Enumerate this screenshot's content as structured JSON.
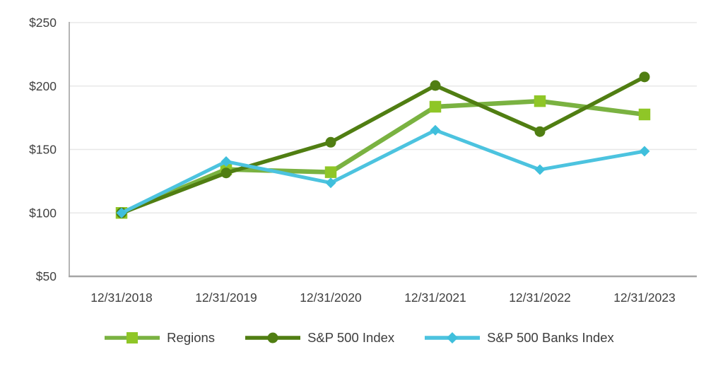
{
  "chart_data": {
    "type": "line",
    "title": "",
    "categories": [
      "12/31/2018",
      "12/31/2019",
      "12/31/2020",
      "12/31/2021",
      "12/31/2022",
      "12/31/2023"
    ],
    "series": [
      {
        "name": "Regions",
        "marker": "square",
        "line_color": "#7ab241",
        "marker_color": "#8fc627",
        "line_width": 6.5,
        "values": [
          100.0,
          134.3,
          132.1,
          183.7,
          188.1,
          177.6
        ]
      },
      {
        "name": "S&P 500 Index",
        "marker": "circle",
        "line_color": "#507e12",
        "marker_color": "#507e12",
        "line_width": 5.5,
        "values": [
          100.0,
          131.5,
          155.7,
          200.4,
          164.1,
          207.2
        ]
      },
      {
        "name": "S&P 500 Banks Index",
        "marker": "diamond",
        "line_color": "#4cc3df",
        "marker_color": "#3fbfdc",
        "line_width": 5,
        "values": [
          100.0,
          140.5,
          123.7,
          165.2,
          134.1,
          148.6
        ]
      }
    ],
    "y_axis": {
      "ticks": [
        {
          "label": "$250",
          "value": 250
        },
        {
          "label": "$200",
          "value": 200
        },
        {
          "label": "$150",
          "value": 150
        },
        {
          "label": "$100",
          "value": 100
        },
        {
          "label": "$50",
          "value": 50
        }
      ],
      "ylim": [
        50,
        250
      ]
    },
    "grid": true,
    "legend_position": "bottom"
  },
  "style": {
    "grid_color": "#e8e8e8",
    "x_axis_color": "#a5a5a5",
    "y_axis_color": "#b5b5b5",
    "tick_text_color": "#404040",
    "legend_text_color": "#3d3d3d"
  }
}
